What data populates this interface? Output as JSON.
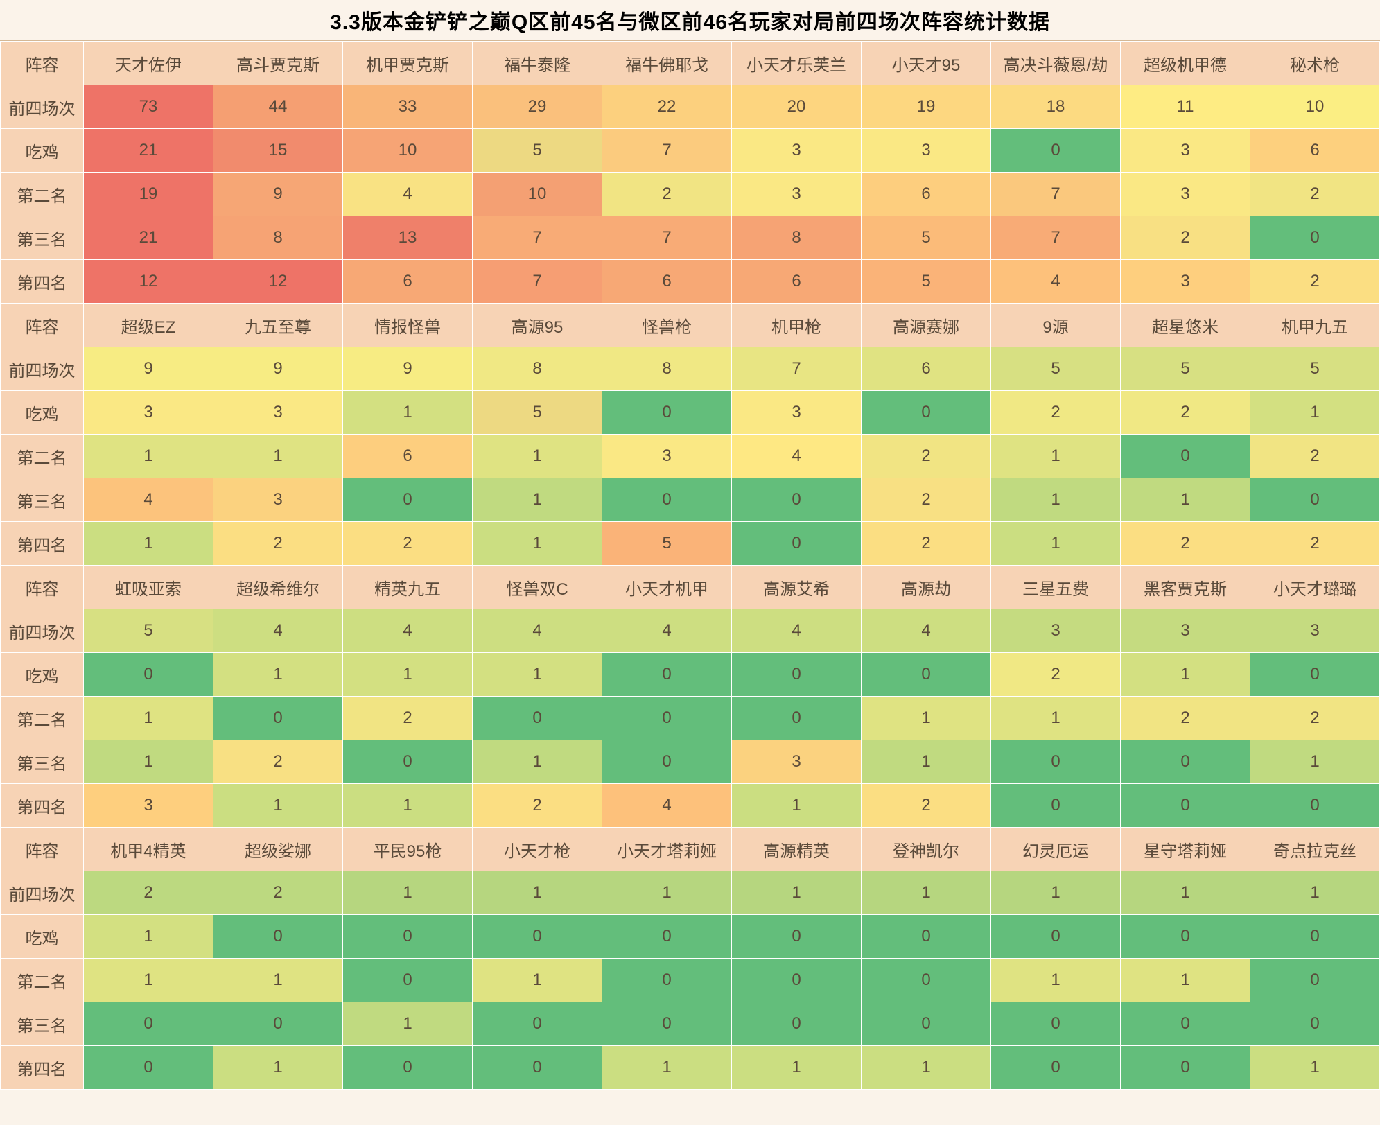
{
  "title": "3.3版本金铲铲之巅Q区前45名与微区前46名玩家对局前四场次阵容统计数据",
  "rowLabels": [
    "阵容",
    "前四场次",
    "吃鸡",
    "第二名",
    "第三名",
    "第四名"
  ],
  "groups": [
    {
      "comps": [
        "天才佐伊",
        "高斗贾克斯",
        "机甲贾克斯",
        "福牛泰隆",
        "福牛佛耶戈",
        "小天才乐芙兰",
        "小天才95",
        "高决斗薇恩/劫",
        "超级机甲德",
        "秘术枪"
      ],
      "rows": {
        "top4": {
          "v": [
            73,
            44,
            33,
            29,
            22,
            20,
            19,
            18,
            11,
            10
          ],
          "c": [
            "#ee7367",
            "#f59f72",
            "#f9b578",
            "#fac07c",
            "#fcd07e",
            "#fdd57f",
            "#fdd780",
            "#fcda81",
            "#feec83",
            "#fbee83"
          ]
        },
        "first": {
          "v": [
            21,
            15,
            10,
            5,
            7,
            3,
            3,
            0,
            3,
            6
          ],
          "c": [
            "#ee7367",
            "#f18b6d",
            "#f6a475",
            "#edd982",
            "#fbcb7e",
            "#fae884",
            "#fae884",
            "#63be7b",
            "#fae884",
            "#fdd07e"
          ]
        },
        "second": {
          "v": [
            19,
            9,
            4,
            10,
            2,
            3,
            6,
            7,
            3,
            2
          ],
          "c": [
            "#ee7367",
            "#f6a675",
            "#f9e283",
            "#f4a073",
            "#f1e483",
            "#fae884",
            "#fdce7e",
            "#fac87d",
            "#fae884",
            "#f1e483"
          ]
        },
        "third": {
          "v": [
            21,
            8,
            13,
            7,
            7,
            8,
            5,
            7,
            2,
            0
          ],
          "c": [
            "#ee7367",
            "#f6a374",
            "#ef806a",
            "#f8ab76",
            "#f8ab76",
            "#f6a374",
            "#fbbb79",
            "#f8ab76",
            "#f8e083",
            "#63be7b"
          ]
        },
        "fourth": {
          "v": [
            12,
            12,
            6,
            7,
            6,
            6,
            5,
            4,
            3,
            2
          ],
          "c": [
            "#ee7367",
            "#ee7367",
            "#f7a875",
            "#f69e73",
            "#f7a875",
            "#f7a875",
            "#fab378",
            "#fdc17b",
            "#fecf7e",
            "#fbde82"
          ]
        }
      }
    },
    {
      "comps": [
        "超级EZ",
        "九五至尊",
        "情报怪兽",
        "高源95",
        "怪兽枪",
        "机甲枪",
        "高源赛娜",
        "9源",
        "超星悠米",
        "机甲九五"
      ],
      "rows": {
        "top4": {
          "v": [
            9,
            9,
            9,
            8,
            8,
            7,
            6,
            5,
            5,
            5
          ],
          "c": [
            "#f7ec83",
            "#f7ec83",
            "#f7ec83",
            "#f0e884",
            "#f0e884",
            "#e8e583",
            "#e0e382",
            "#d7e082",
            "#d7e082",
            "#d7e082"
          ]
        },
        "first": {
          "v": [
            3,
            3,
            1,
            5,
            0,
            3,
            0,
            2,
            2,
            1
          ],
          "c": [
            "#fae884",
            "#fae884",
            "#d3e081",
            "#edd982",
            "#63be7b",
            "#fae884",
            "#63be7b",
            "#f0e884",
            "#f0e884",
            "#d3e081"
          ]
        },
        "second": {
          "v": [
            1,
            1,
            6,
            1,
            3,
            4,
            2,
            1,
            0,
            2
          ],
          "c": [
            "#dfe382",
            "#dfe382",
            "#fdce7e",
            "#dfe382",
            "#fae884",
            "#fee883",
            "#f1e483",
            "#dfe382",
            "#63be7b",
            "#f1e483"
          ]
        },
        "third": {
          "v": [
            4,
            3,
            0,
            1,
            0,
            0,
            2,
            1,
            1,
            0
          ],
          "c": [
            "#fcc37c",
            "#fbd27f",
            "#63be7b",
            "#c0da80",
            "#63be7b",
            "#63be7b",
            "#f8e083",
            "#c0da80",
            "#c0da80",
            "#63be7b"
          ]
        },
        "fourth": {
          "v": [
            1,
            2,
            2,
            1,
            5,
            0,
            2,
            1,
            2,
            2
          ],
          "c": [
            "#cbde81",
            "#fbde82",
            "#fbde82",
            "#cbde81",
            "#fab378",
            "#63be7b",
            "#fbde82",
            "#cbde81",
            "#fbde82",
            "#fbde82"
          ]
        }
      }
    },
    {
      "comps": [
        "虹吸亚索",
        "超级希维尔",
        "精英九五",
        "怪兽双C",
        "小天才机甲",
        "高源艾希",
        "高源劫",
        "三星五费",
        "黑客贾克斯",
        "小天才璐璐"
      ],
      "rows": {
        "top4": {
          "v": [
            5,
            4,
            4,
            4,
            4,
            4,
            4,
            3,
            3,
            3
          ],
          "c": [
            "#d7e082",
            "#cdde81",
            "#cdde81",
            "#cdde81",
            "#cdde81",
            "#cdde81",
            "#cdde81",
            "#c5db80",
            "#c5db80",
            "#c5db80"
          ]
        },
        "first": {
          "v": [
            0,
            1,
            1,
            1,
            0,
            0,
            0,
            2,
            1,
            0
          ],
          "c": [
            "#63be7b",
            "#d3e081",
            "#d3e081",
            "#d3e081",
            "#63be7b",
            "#63be7b",
            "#63be7b",
            "#f0e884",
            "#d3e081",
            "#63be7b"
          ]
        },
        "second": {
          "v": [
            1,
            0,
            2,
            0,
            0,
            0,
            1,
            1,
            2,
            2
          ],
          "c": [
            "#dfe382",
            "#63be7b",
            "#f1e483",
            "#63be7b",
            "#63be7b",
            "#63be7b",
            "#dfe382",
            "#dfe382",
            "#f1e483",
            "#f1e483"
          ]
        },
        "third": {
          "v": [
            1,
            2,
            0,
            1,
            0,
            3,
            1,
            0,
            0,
            1
          ],
          "c": [
            "#c0da80",
            "#f8e083",
            "#63be7b",
            "#c0da80",
            "#63be7b",
            "#fbd27f",
            "#c0da80",
            "#63be7b",
            "#63be7b",
            "#c0da80"
          ]
        },
        "fourth": {
          "v": [
            3,
            1,
            1,
            2,
            4,
            1,
            2,
            0,
            0,
            0
          ],
          "c": [
            "#fecf7e",
            "#cbde81",
            "#cbde81",
            "#fbde82",
            "#fdc17b",
            "#cbde81",
            "#fbde82",
            "#63be7b",
            "#63be7b",
            "#63be7b"
          ]
        }
      }
    },
    {
      "comps": [
        "机甲4精英",
        "超级娑娜",
        "平民95枪",
        "小天才枪",
        "小天才塔莉娅",
        "高源精英",
        "登神凯尔",
        "幻灵厄运",
        "星守塔莉娅",
        "奇点拉克丝"
      ],
      "rows": {
        "top4": {
          "v": [
            2,
            2,
            1,
            1,
            1,
            1,
            1,
            1,
            1,
            1
          ],
          "c": [
            "#bcd980",
            "#bcd980",
            "#b6d67f",
            "#b6d67f",
            "#b6d67f",
            "#b6d67f",
            "#b6d67f",
            "#b6d67f",
            "#b6d67f",
            "#b6d67f"
          ]
        },
        "first": {
          "v": [
            1,
            0,
            0,
            0,
            0,
            0,
            0,
            0,
            0,
            0
          ],
          "c": [
            "#d3e081",
            "#63be7b",
            "#63be7b",
            "#63be7b",
            "#63be7b",
            "#63be7b",
            "#63be7b",
            "#63be7b",
            "#63be7b",
            "#63be7b"
          ]
        },
        "second": {
          "v": [
            1,
            1,
            0,
            1,
            0,
            0,
            0,
            1,
            1,
            0
          ],
          "c": [
            "#dfe382",
            "#dfe382",
            "#63be7b",
            "#dfe382",
            "#63be7b",
            "#63be7b",
            "#63be7b",
            "#dfe382",
            "#dfe382",
            "#63be7b"
          ]
        },
        "third": {
          "v": [
            0,
            0,
            1,
            0,
            0,
            0,
            0,
            0,
            0,
            0
          ],
          "c": [
            "#63be7b",
            "#63be7b",
            "#c0da80",
            "#63be7b",
            "#63be7b",
            "#63be7b",
            "#63be7b",
            "#63be7b",
            "#63be7b",
            "#63be7b"
          ]
        },
        "fourth": {
          "v": [
            0,
            1,
            0,
            0,
            1,
            1,
            1,
            0,
            0,
            1
          ],
          "c": [
            "#63be7b",
            "#cbde81",
            "#63be7b",
            "#63be7b",
            "#cbde81",
            "#cbde81",
            "#cbde81",
            "#63be7b",
            "#63be7b",
            "#cbde81"
          ]
        }
      }
    }
  ],
  "headerBg": "#f7d3b5"
}
